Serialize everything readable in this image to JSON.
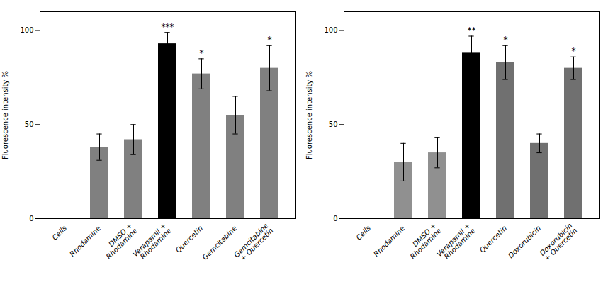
{
  "chart_data": [
    {
      "type": "bar",
      "categories": [
        "Cells",
        "Rhodamine",
        "DMSO +\nRhodamine",
        "Verapamil +\nRhodamine",
        "Quercetin",
        "Gemcitabine",
        "Gemcitabine\n+ Quercetin"
      ],
      "values": [
        0,
        38,
        42,
        93,
        77,
        55,
        80
      ],
      "errors": [
        0,
        7,
        8,
        6,
        8,
        10,
        12
      ],
      "colors": [
        "#808080",
        "#808080",
        "#808080",
        "#000000",
        "#808080",
        "#808080",
        "#808080"
      ],
      "significance": [
        null,
        null,
        null,
        "***",
        "*",
        null,
        "*"
      ],
      "ylabel": "Fluorescence intensity %",
      "ylim": [
        0,
        110
      ],
      "yticks": [
        0,
        50,
        100
      ]
    },
    {
      "type": "bar",
      "categories": [
        "Cells",
        "Rhodamine",
        "DMSO +\nRhodamine",
        "Verapamil +\nRhodamine",
        "Quercetin",
        "Doxorubicin",
        "Doxorubicin\n+ Quercetin"
      ],
      "values": [
        0,
        30,
        35,
        88,
        83,
        40,
        80
      ],
      "errors": [
        0,
        10,
        8,
        9,
        9,
        5,
        6
      ],
      "colors": [
        "#808080",
        "#909090",
        "#909090",
        "#000000",
        "#707070",
        "#707070",
        "#707070"
      ],
      "significance": [
        null,
        null,
        null,
        "**",
        "*",
        null,
        "*"
      ],
      "ylabel": "Fluorescence intensity %",
      "ylim": [
        0,
        110
      ],
      "yticks": [
        0,
        50,
        100
      ]
    }
  ]
}
